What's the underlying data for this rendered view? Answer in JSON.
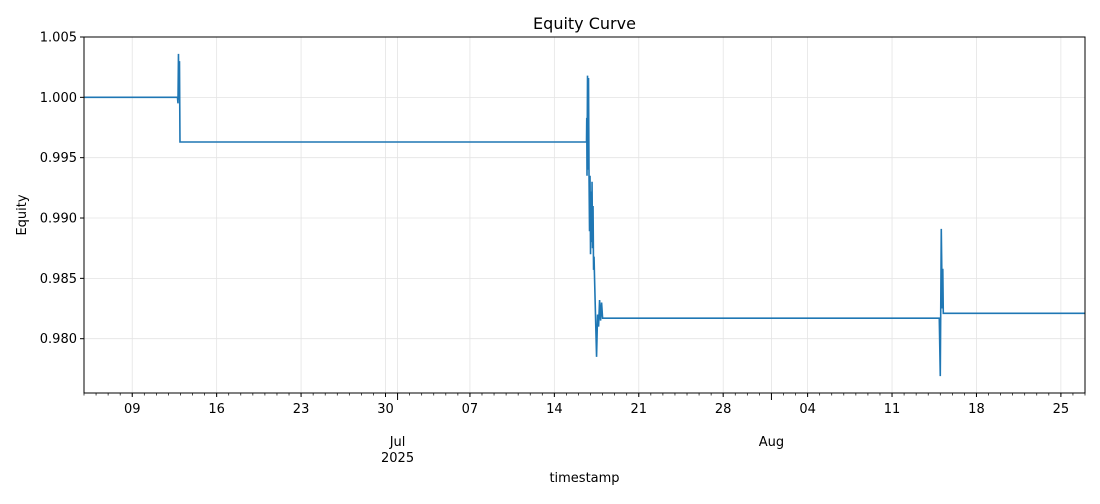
{
  "chart_data": {
    "type": "line",
    "title": "Equity Curve",
    "xlabel": "timestamp",
    "ylabel": "Equity",
    "x_range": [
      "2025-06-05",
      "2025-08-27"
    ],
    "ylim": [
      0.9755,
      1.005
    ],
    "grid": true,
    "line_color": "#1f77b4",
    "y_ticks": [
      "0.980",
      "0.985",
      "0.990",
      "0.995",
      "1.000",
      "1.005"
    ],
    "x_ticks": [
      {
        "date": "2025-06-09",
        "label": "09"
      },
      {
        "date": "2025-06-16",
        "label": "16"
      },
      {
        "date": "2025-06-23",
        "label": "23"
      },
      {
        "date": "2025-06-30",
        "label": "30"
      },
      {
        "date": "2025-07-07",
        "label": "07"
      },
      {
        "date": "2025-07-14",
        "label": "14"
      },
      {
        "date": "2025-07-21",
        "label": "21"
      },
      {
        "date": "2025-07-28",
        "label": "28"
      },
      {
        "date": "2025-08-04",
        "label": "04"
      },
      {
        "date": "2025-08-11",
        "label": "11"
      },
      {
        "date": "2025-08-18",
        "label": "18"
      },
      {
        "date": "2025-08-25",
        "label": "25"
      }
    ],
    "major_ticks": [
      {
        "date": "2025-07-01",
        "label": "Jul",
        "sublabel": "2025"
      },
      {
        "date": "2025-08-01",
        "label": "Aug",
        "sublabel": ""
      }
    ],
    "series": [
      {
        "x": [
          "2025-06-05T00:00",
          "2025-06-12T18:00",
          "2025-06-12T19:00",
          "2025-06-12T20:00",
          "2025-06-12T21:00",
          "2025-06-12T22:00",
          "2025-06-12T23:00",
          "2025-06-13T00:00",
          "2025-07-16T16:00",
          "2025-07-16T16:30",
          "2025-07-16T17:00",
          "2025-07-16T18:00",
          "2025-07-16T19:00",
          "2025-07-16T20:00",
          "2025-07-16T21:00",
          "2025-07-16T22:00",
          "2025-07-16T23:00",
          "2025-07-17T00:00",
          "2025-07-17T01:00",
          "2025-07-17T02:00",
          "2025-07-17T03:00",
          "2025-07-17T04:00",
          "2025-07-17T05:00",
          "2025-07-17T06:00",
          "2025-07-17T07:00",
          "2025-07-17T08:00",
          "2025-07-17T12:00",
          "2025-07-17T14:00",
          "2025-07-17T16:00",
          "2025-07-17T18:00",
          "2025-07-17T20:00",
          "2025-07-17T22:00",
          "2025-07-18T00:00",
          "2025-07-18T02:00",
          "2025-07-18T04:00",
          "2025-07-18T06:00",
          "2025-08-14T22:00",
          "2025-08-15T00:00",
          "2025-08-15T02:00",
          "2025-08-15T04:00",
          "2025-08-15T05:00",
          "2025-08-15T06:00",
          "2025-08-27T00:00"
        ],
        "y": [
          1.0,
          1.0,
          0.9995,
          1.0036,
          0.9998,
          1.003,
          0.9963,
          0.9963,
          0.9963,
          0.9983,
          0.9935,
          1.0018,
          0.994,
          1.0016,
          0.9935,
          0.9889,
          0.9935,
          0.987,
          0.9922,
          0.988,
          0.993,
          0.9875,
          0.991,
          0.9857,
          0.9868,
          0.985,
          0.9785,
          0.982,
          0.981,
          0.9832,
          0.9815,
          0.983,
          0.9817,
          0.9817,
          0.9817,
          0.9817,
          0.9817,
          0.9769,
          0.9891,
          0.9825,
          0.9858,
          0.9821,
          0.9821
        ]
      }
    ]
  }
}
